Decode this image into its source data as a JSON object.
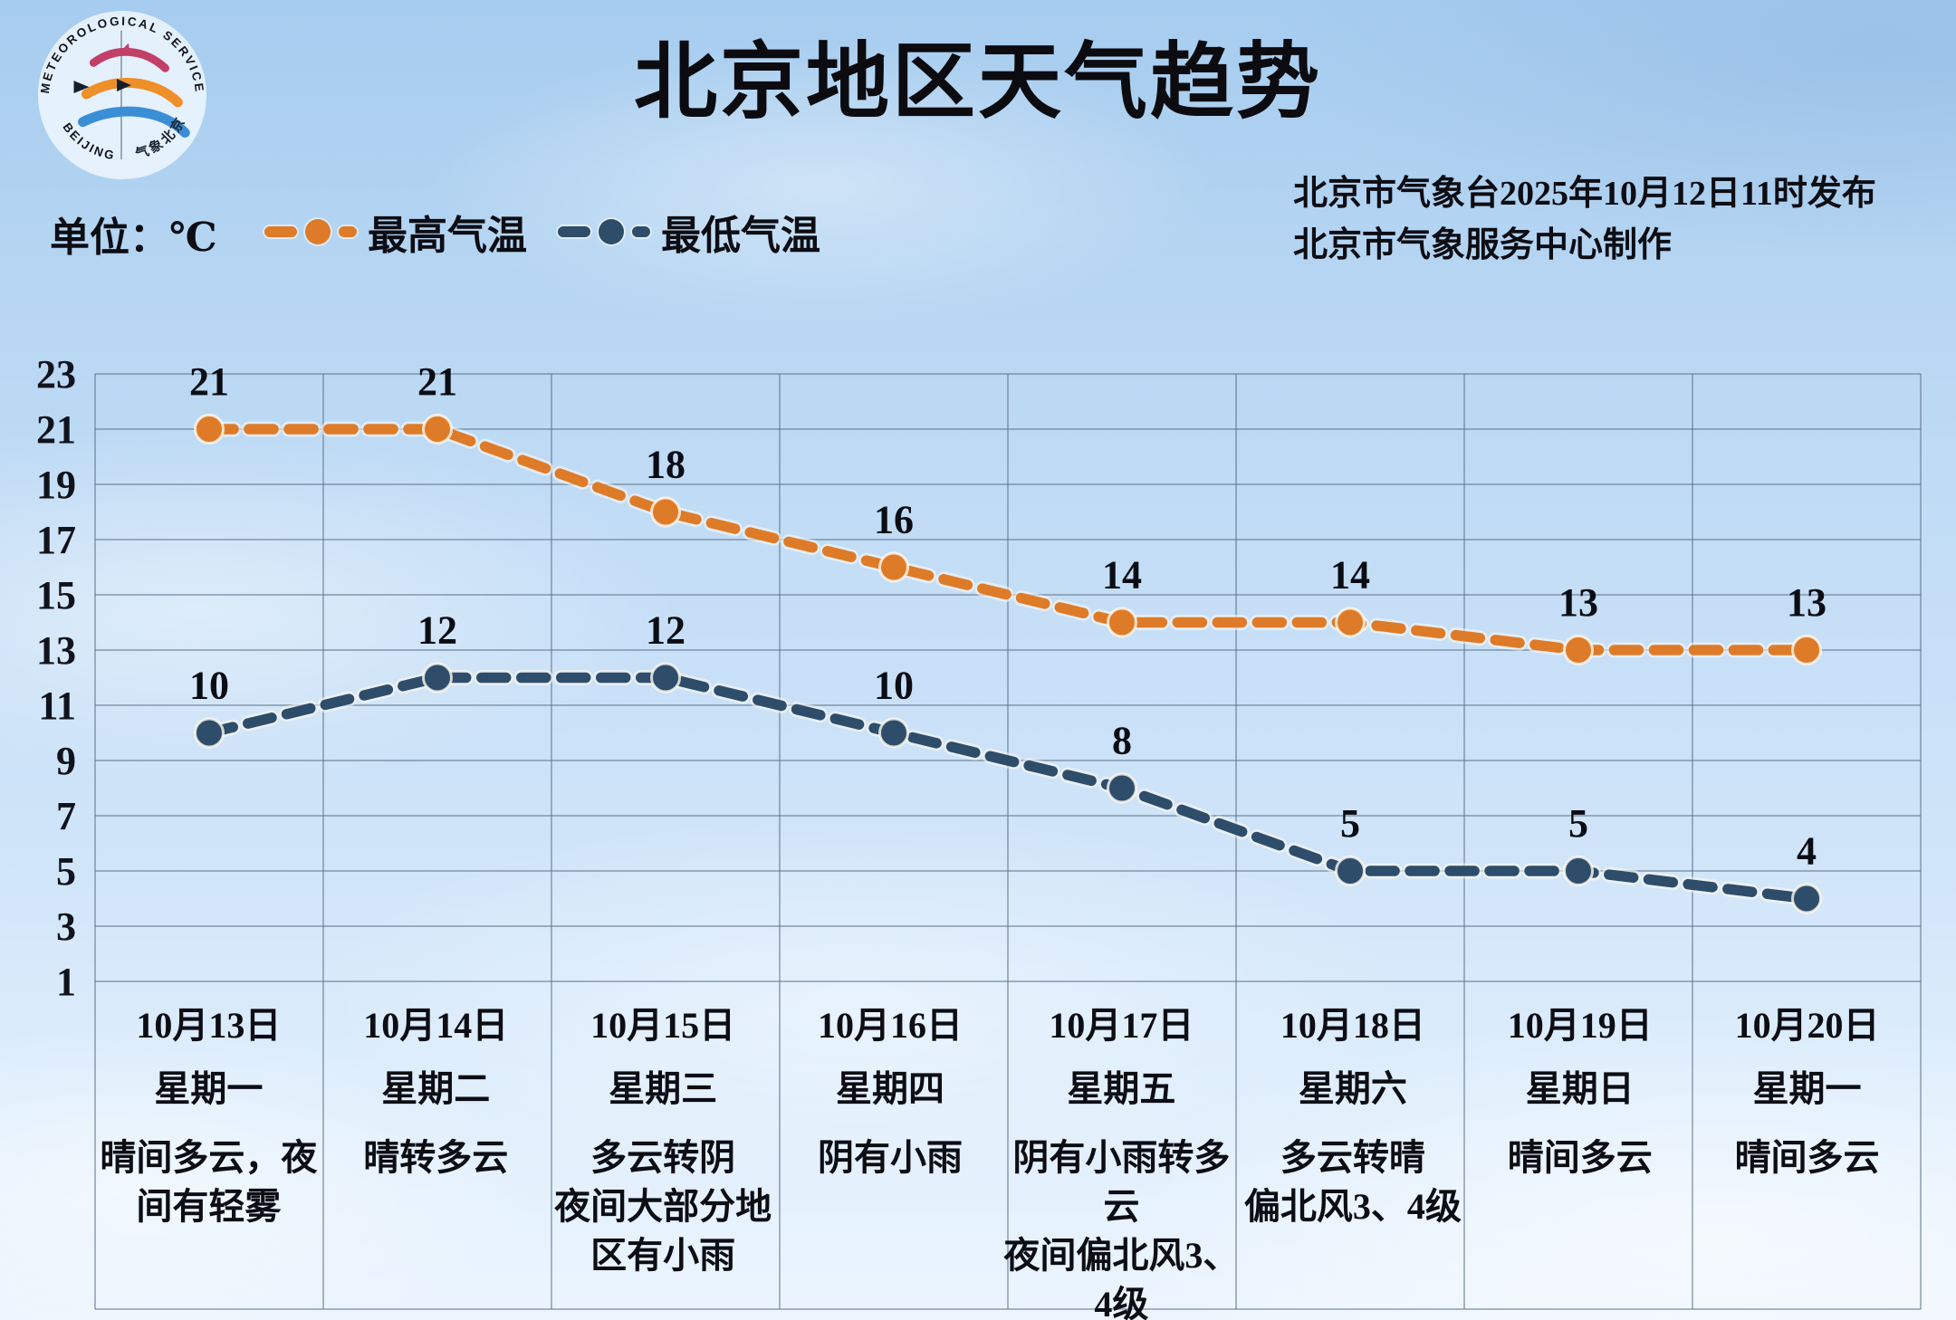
{
  "header": {
    "title": "北京地区天气趋势",
    "issued_by": "北京市气象台2025年10月12日11时发布",
    "produced_by": "北京市气象服务中心制作"
  },
  "logo": {
    "text_top": "METEOROLOGICAL SERVICE",
    "text_left": "BEIJING",
    "text_bottom": "气象北京"
  },
  "colors": {
    "high_series": "#de7b28",
    "low_series": "#2e4d6b",
    "grid": "rgba(92,112,134,0.5)",
    "text": "#0d0d14",
    "halo": "rgba(255,250,240,0.55)"
  },
  "chart_data": {
    "type": "line",
    "unit_label": "单位：℃",
    "title": "北京地区天气趋势",
    "ylabel": "℃",
    "ylim": [
      1,
      23
    ],
    "yticks": [
      23,
      21,
      19,
      17,
      15,
      13,
      11,
      9,
      7,
      5,
      3,
      1
    ],
    "grid": true,
    "legend_position": "top-left",
    "days": [
      {
        "date": "10月13日",
        "weekday": "星期一",
        "weather": "晴间多云，夜\n间有轻雾"
      },
      {
        "date": "10月14日",
        "weekday": "星期二",
        "weather": "晴转多云"
      },
      {
        "date": "10月15日",
        "weekday": "星期三",
        "weather": "多云转阴\n夜间大部分地\n区有小雨"
      },
      {
        "date": "10月16日",
        "weekday": "星期四",
        "weather": "阴有小雨"
      },
      {
        "date": "10月17日",
        "weekday": "星期五",
        "weather": "阴有小雨转多\n云\n夜间偏北风3、\n4级"
      },
      {
        "date": "10月18日",
        "weekday": "星期六",
        "weather": "多云转晴\n偏北风3、4级"
      },
      {
        "date": "10月19日",
        "weekday": "星期日",
        "weather": "晴间多云"
      },
      {
        "date": "10月20日",
        "weekday": "星期一",
        "weather": "晴间多云"
      }
    ],
    "series": [
      {
        "name": "最高气温",
        "color": "#de7b28",
        "values": [
          21,
          21,
          18,
          16,
          14,
          14,
          13,
          13
        ]
      },
      {
        "name": "最低气温",
        "color": "#2e4d6b",
        "values": [
          10,
          12,
          12,
          10,
          8,
          5,
          5,
          4
        ]
      }
    ]
  }
}
